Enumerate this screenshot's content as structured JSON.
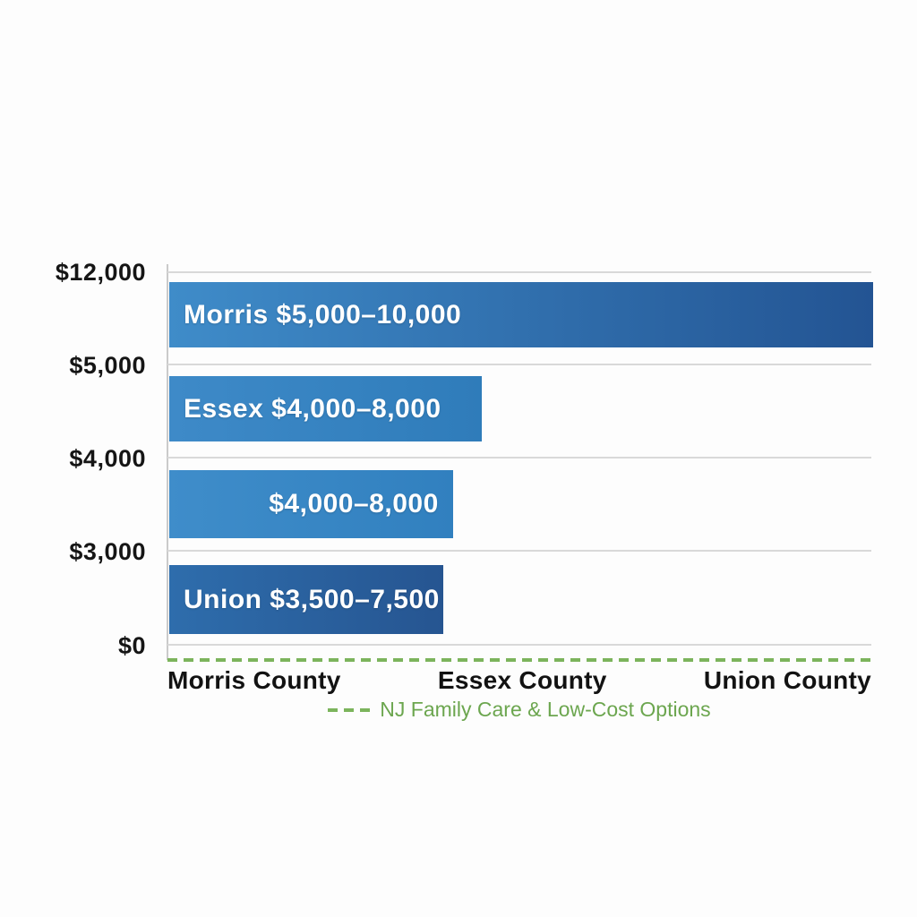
{
  "chart_data": {
    "type": "bar",
    "orientation": "horizontal",
    "title": "",
    "y_axis_ticks": [
      "$12,000",
      "$5,000",
      "$4,000",
      "$3,000",
      "$0"
    ],
    "x_categories": [
      "Morris County",
      "Essex County",
      "Union County"
    ],
    "bars": [
      {
        "name": "Morris",
        "label": "Morris $5,000–10,000",
        "cost_range_usd": [
          5000,
          10000
        ],
        "width_frac": 1.0,
        "color_from": "#3f8cc9",
        "color_to": "#235493",
        "label_align": "left"
      },
      {
        "name": "Essex",
        "label": "Essex $4,000–8,000",
        "cost_range_usd": [
          4000,
          8000
        ],
        "width_frac": 0.444,
        "color_from": "#3e8ac8",
        "color_to": "#2f7cba",
        "label_align": "left"
      },
      {
        "name": "",
        "label": "$4,000–8,000",
        "cost_range_usd": [
          4000,
          8000
        ],
        "width_frac": 0.403,
        "color_from": "#3f8dca",
        "color_to": "#3180bf",
        "label_align": "right"
      },
      {
        "name": "Union",
        "label": "Union $3,500–7,500",
        "cost_range_usd": [
          3500,
          7500
        ],
        "width_frac": 0.389,
        "color_from": "#2e6dac",
        "color_to": "#265591",
        "label_align": "left"
      }
    ],
    "legend": {
      "label": "NJ Family Care & Low-Cost Options",
      "text_color": "#6ca64f",
      "dash_color": "#7cb45c"
    },
    "baseline": {
      "style": "dashed",
      "color": "#7cb45c"
    },
    "grid": {
      "visible": true,
      "color": "#d9d9d9"
    },
    "axis_line_color": "#cbcbcb",
    "tick_text_color": "#151515",
    "bar_text_color": "#ffffff",
    "background": "#fdfdfd"
  }
}
